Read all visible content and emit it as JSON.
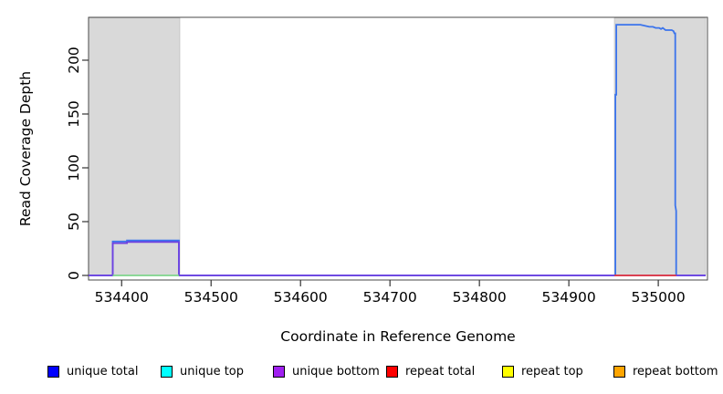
{
  "figure": {
    "background": "#ffffff"
  },
  "chart_data": {
    "type": "line",
    "title": "",
    "xlabel": "Coordinate in Reference Genome",
    "ylabel": "Read Coverage Depth",
    "xlim": [
      534363,
      535055
    ],
    "ylim": [
      0,
      240
    ],
    "xticks": [
      534400,
      534500,
      534600,
      534700,
      534800,
      534900,
      535000
    ],
    "yticks": [
      0,
      50,
      100,
      150,
      200
    ],
    "grid": false,
    "legend_position": "bottom",
    "plot_background": "#ffffff",
    "shaded_regions": [
      {
        "name": "repeat-region-left",
        "x1": 534363,
        "x2": 534465,
        "color": "#d9d9d9"
      },
      {
        "name": "repeat-region-right",
        "x1": 534951,
        "x2": 535053,
        "color": "#d9d9d9"
      }
    ],
    "legend": [
      {
        "label": "unique total",
        "color": "#0000ff"
      },
      {
        "label": "unique top",
        "color": "#00ffff"
      },
      {
        "label": "unique bottom",
        "color": "#a020f0"
      },
      {
        "label": "repeat total",
        "color": "#ff0000"
      },
      {
        "label": "repeat top",
        "color": "#ffff00"
      },
      {
        "label": "repeat bottom",
        "color": "#ffa500"
      }
    ],
    "series": [
      {
        "name": "unique total",
        "line_color": "#3b74ec",
        "points": [
          [
            534363,
            0
          ],
          [
            534390,
            0
          ],
          [
            534390,
            31.5
          ],
          [
            534406,
            31.5
          ],
          [
            534406,
            32.5
          ],
          [
            534464,
            32.5
          ],
          [
            534464,
            0
          ],
          [
            534952,
            0
          ],
          [
            534952,
            168
          ],
          [
            534953,
            168
          ],
          [
            534953,
            233
          ],
          [
            534980,
            233
          ],
          [
            534985,
            232
          ],
          [
            534990,
            231
          ],
          [
            534994,
            231
          ],
          [
            534997,
            230
          ],
          [
            535001,
            230
          ],
          [
            535003,
            229
          ],
          [
            535005,
            230
          ],
          [
            535008,
            228
          ],
          [
            535015,
            228
          ],
          [
            535017,
            227
          ],
          [
            535018,
            225
          ],
          [
            535019,
            225
          ],
          [
            535019,
            65
          ],
          [
            535020,
            60
          ],
          [
            535020,
            0
          ],
          [
            535053,
            0
          ]
        ]
      },
      {
        "name": "unique bottom",
        "line_color": "#7040e0",
        "points": [
          [
            534363,
            0
          ],
          [
            534390,
            0
          ],
          [
            534390,
            30
          ],
          [
            534406,
            30
          ],
          [
            534406,
            31
          ],
          [
            534464,
            31
          ],
          [
            534464,
            0
          ],
          [
            535053,
            0
          ]
        ]
      },
      {
        "name": "unique top",
        "line_color": "#7fd48c",
        "points": [
          [
            534390,
            0
          ],
          [
            534464,
            0
          ]
        ]
      },
      {
        "name": "repeat total",
        "line_color": "#e4393c",
        "points": [
          [
            534951,
            0
          ],
          [
            535020,
            0
          ]
        ]
      }
    ]
  }
}
